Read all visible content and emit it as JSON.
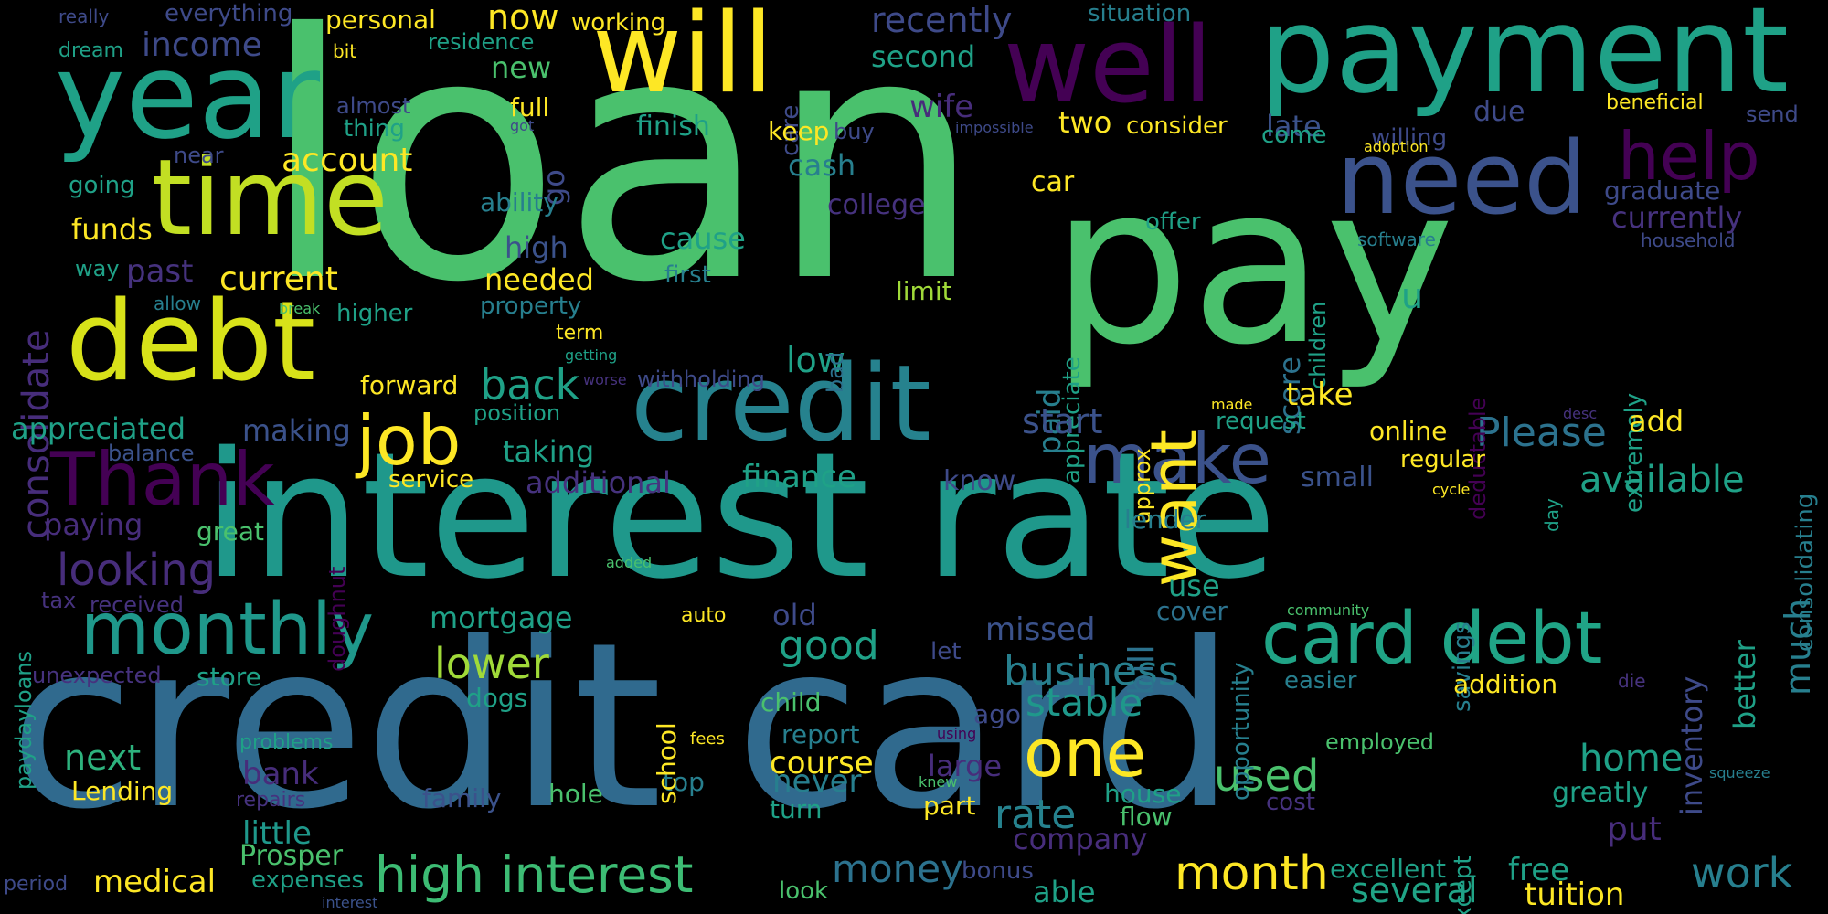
{
  "background": "#000000",
  "palette": {
    "dark_purple": "#440154",
    "purple": "#46327e",
    "indigo": "#365c8d",
    "blue": "#277f8e",
    "teal": "#1fa187",
    "green": "#4ac16d",
    "lime": "#a0da39",
    "yellow": "#fde725"
  },
  "words": {
    "loan": "loan",
    "credit_card": "credit card",
    "pay": "pay",
    "interest_rate": "interest rate",
    "payment": "payment",
    "will": "will",
    "well": "well",
    "year": "year",
    "time": "time",
    "debt": "debt",
    "need": "need",
    "credit": "credit",
    "card_debt": "card debt",
    "monthly": "monthly",
    "Thank": "Thank",
    "job": "job",
    "make": "make",
    "want": "want",
    "help": "help",
    "one": "one",
    "high_interest": "high interest",
    "month": "month",
    "consolidate": "consolidate",
    "income": "income",
    "account": "account",
    "current": "current",
    "looking": "looking",
    "back": "back",
    "lower": "lower",
    "business": "business",
    "good": "good",
    "stable": "stable",
    "Please": "Please",
    "available": "available",
    "used": "used",
    "rate": "rate",
    "work": "work",
    "money": "money",
    "home": "home",
    "course": "course",
    "several": "several",
    "tuition": "tuition",
    "medical": "medical",
    "next": "next",
    "little": "little",
    "bank": "bank",
    "Prosper": "Prosper",
    "recently": "recently",
    "second": "second",
    "wife": "wife",
    "now": "now",
    "personal": "personal",
    "everything": "everything",
    "working": "working",
    "situation": "situation",
    "residence": "residence",
    "dream": "dream",
    "really": "really",
    "bit": "bit",
    "new": "new",
    "full": "full",
    "almost": "almost",
    "thing": "thing",
    "near": "near",
    "going": "going",
    "funds": "funds",
    "way": "way",
    "past": "past",
    "allow": "allow",
    "break": "break",
    "higher": "higher",
    "forward": "forward",
    "position": "position",
    "appreciated": "appreciated",
    "balance": "balance",
    "making": "making",
    "service": "service",
    "additional": "additional",
    "paying": "paying",
    "great": "great",
    "tax": "tax",
    "received": "received",
    "unexpected": "unexpected",
    "store": "store",
    "paydayloans": "paydayloans",
    "problems": "problems",
    "Lending": "Lending",
    "repairs": "repairs",
    "period": "period",
    "expenses": "expenses",
    "interest": "interest",
    "family": "family",
    "hole": "hole",
    "top": "top",
    "mortgage": "mortgage",
    "school": "school",
    "auto": "auto",
    "dogs": "dogs",
    "fees": "fees",
    "child": "child",
    "report": "report",
    "never": "never",
    "turn": "turn",
    "look": "look",
    "go": "go",
    "care": "care",
    "got": "got",
    "keep": "keep",
    "buy": "buy",
    "finish": "finish",
    "cash": "cash",
    "ability": "ability",
    "cause": "cause",
    "first": "first",
    "high": "high",
    "needed": "needed",
    "property": "property",
    "term": "term",
    "getting": "getting",
    "worse": "worse",
    "withholding": "withholding",
    "low": "low",
    "taking": "taking",
    "finance": "finance",
    "bad": "bad",
    "college": "college",
    "two": "two",
    "car": "car",
    "limit": "limit",
    "appreciate": "appreciate",
    "paid": "paid",
    "offer": "offer",
    "consider": "consider",
    "impossible": "impossible",
    "late": "late",
    "come": "come",
    "due": "due",
    "willing": "willing",
    "adoption": "adoption",
    "beneficial": "beneficial",
    "send": "send",
    "graduate": "graduate",
    "currently": "currently",
    "software": "software",
    "household": "household",
    "children": "children",
    "score": "score",
    "deductable": "deductable",
    "extremely": "extremely",
    "u": "u",
    "start": "start",
    "approx": "approx",
    "made": "made",
    "request": "request",
    "take": "take",
    "online": "online",
    "regular": "regular",
    "add": "add",
    "consolidating": "consolidating",
    "desc": "desc",
    "small": "small",
    "know": "know",
    "cycle": "cycle",
    "day": "day",
    "lender": "lender",
    "bill": "bill",
    "opportunity": "opportunity",
    "savings": "savings",
    "inventory": "inventory",
    "much": "much",
    "better": "better",
    "use": "use",
    "cover": "cover",
    "added": "added",
    "community": "community",
    "doughnut": "doughnut",
    "missed": "missed",
    "old": "old",
    "let": "let",
    "easier": "easier",
    "addition": "addition",
    "die": "die",
    "ago": "ago",
    "large": "large",
    "using": "using",
    "employed": "employed",
    "squeeze": "squeeze",
    "house": "house",
    "flow": "flow",
    "cost": "cost",
    "greatly": "greatly",
    "knew": "knew",
    "part": "part",
    "except": "except",
    "put": "put",
    "company": "company",
    "bonus": "bonus",
    "able": "able",
    "excellent": "excellent",
    "free": "free"
  }
}
